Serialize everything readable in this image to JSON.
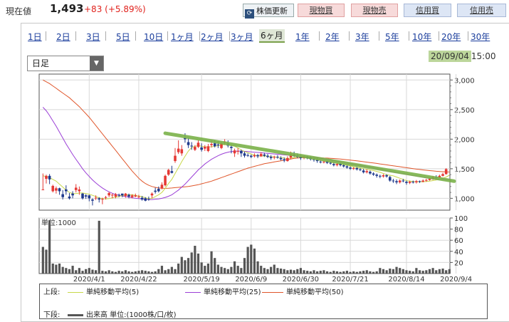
{
  "header": {
    "price_label": "現在値",
    "price_value": "1,493",
    "price_change": "+83 (+5.89%)",
    "refresh_label": "株価更新",
    "buttons": [
      "現物買",
      "現物売",
      "信用買",
      "信用売"
    ]
  },
  "periods": [
    "1日",
    "2日",
    "3日",
    "5日",
    "10日",
    "1ヶ月",
    "2ヶ月",
    "3ヶ月",
    "6ヶ月",
    "1年",
    "2年",
    "3年",
    "5年",
    "10年",
    "20年",
    "30年"
  ],
  "active_period": "6ヶ月",
  "interval_select": "日足",
  "timestamp": {
    "date": "20/09/04",
    "time": "15:00"
  },
  "legend": {
    "upper_label": "上段:",
    "lower_label": "下段:",
    "ma5": "単純移動平均(5)",
    "ma25": "単純移動平均(25)",
    "ma50": "単純移動平均(50)",
    "volume": "出来高 単位:(1000株/口/枚)"
  },
  "colors": {
    "up": "#e53935",
    "down": "#1f3a8c",
    "ma5": "#c8d84a",
    "ma25": "#9b3fd6",
    "ma50": "#e0562b",
    "trend": "#7bb24a",
    "volume": "#555555"
  },
  "chart_data": [
    {
      "type": "candlestick",
      "title": "",
      "ylim": [
        800,
        3100
      ],
      "yticks": [
        "3,000",
        "2,500",
        "2,000",
        "1,500",
        "1,000"
      ],
      "ytick_values": [
        3000,
        2500,
        2000,
        1500,
        1000
      ],
      "xticks": [
        "2020/4/1",
        "2020/4/22",
        "2020/5/19",
        "2020/6/9",
        "2020/6/30",
        "2020/7/21",
        "2020/8/14",
        "2020/9/4"
      ],
      "xtick_index": [
        14,
        29,
        48,
        63,
        78,
        93,
        110,
        125
      ],
      "grid": true,
      "candles": [
        [
          1150,
          1150,
          1420,
          1140
        ],
        [
          1330,
          1380,
          1400,
          1250
        ],
        [
          1380,
          1320,
          1410,
          1240
        ],
        [
          1120,
          1210,
          1230,
          1100
        ],
        [
          1130,
          1170,
          1200,
          1080
        ],
        [
          1170,
          1120,
          1180,
          1060
        ],
        [
          1070,
          1020,
          1140,
          980
        ],
        [
          1150,
          1120,
          1220,
          1060
        ],
        [
          1030,
          1000,
          1090,
          980
        ],
        [
          1080,
          1050,
          1120,
          1000
        ],
        [
          1140,
          1180,
          1240,
          1100
        ],
        [
          1120,
          1150,
          1200,
          1060
        ],
        [
          1080,
          1000,
          1090,
          980
        ],
        [
          1050,
          1030,
          1070,
          990
        ],
        [
          1050,
          1000,
          1060,
          950
        ],
        [
          980,
          960,
          1000,
          880
        ],
        [
          1000,
          1010,
          1050,
          970
        ],
        [
          1000,
          980,
          1020,
          930
        ],
        [
          980,
          990,
          1010,
          900
        ],
        [
          1010,
          1020,
          1040,
          980
        ],
        [
          1050,
          1090,
          1110,
          1020
        ],
        [
          1050,
          1060,
          1080,
          1000
        ],
        [
          1030,
          1070,
          1090,
          1000
        ],
        [
          1060,
          1050,
          1080,
          1020
        ],
        [
          1080,
          1050,
          1080,
          1020
        ],
        [
          1040,
          1080,
          1090,
          1010
        ],
        [
          1060,
          1030,
          1080,
          1000
        ],
        [
          1020,
          1050,
          1070,
          1000
        ],
        [
          1030,
          1050,
          1080,
          1020
        ],
        [
          1020,
          1030,
          1060,
          1000
        ],
        [
          1010,
          980,
          1040,
          960
        ],
        [
          1000,
          960,
          1020,
          950
        ],
        [
          990,
          980,
          1030,
          960
        ],
        [
          1050,
          1080,
          1100,
          1000
        ],
        [
          1130,
          1110,
          1180,
          1080
        ],
        [
          1160,
          1120,
          1200,
          1100
        ],
        [
          1170,
          1230,
          1270,
          1150
        ],
        [
          1220,
          1380,
          1400,
          1200
        ],
        [
          1400,
          1480,
          1500,
          1380
        ],
        [
          1460,
          1430,
          1550,
          1420
        ],
        [
          1630,
          1720,
          1850,
          1600
        ],
        [
          1780,
          1840,
          1980,
          1750
        ],
        [
          1760,
          1830,
          1900,
          1720
        ],
        [
          2020,
          2000,
          2100,
          1940
        ],
        [
          1950,
          1900,
          2020,
          1850
        ],
        [
          1890,
          1880,
          1950,
          1820
        ],
        [
          1820,
          1870,
          1900,
          1800
        ],
        [
          1870,
          1940,
          1980,
          1850
        ],
        [
          1860,
          1820,
          1930,
          1790
        ],
        [
          1840,
          1870,
          1900,
          1800
        ],
        [
          1800,
          1880,
          1920,
          1780
        ],
        [
          1900,
          1920,
          1980,
          1860
        ],
        [
          1930,
          1880,
          1980,
          1860
        ],
        [
          1910,
          1900,
          1960,
          1850
        ],
        [
          1850,
          1930,
          1950,
          1830
        ],
        [
          1940,
          1960,
          2000,
          1900
        ],
        [
          1930,
          1890,
          1980,
          1860
        ],
        [
          1870,
          1850,
          1900,
          1760
        ],
        [
          1760,
          1810,
          1840,
          1700
        ],
        [
          1790,
          1800,
          1850,
          1740
        ],
        [
          1800,
          1760,
          1820,
          1700
        ],
        [
          1760,
          1720,
          1790,
          1690
        ],
        [
          1730,
          1720,
          1760,
          1700
        ],
        [
          1720,
          1700,
          1740,
          1680
        ],
        [
          1710,
          1730,
          1760,
          1690
        ],
        [
          1730,
          1710,
          1750,
          1680
        ],
        [
          1710,
          1750,
          1780,
          1700
        ],
        [
          1740,
          1720,
          1770,
          1700
        ],
        [
          1720,
          1700,
          1750,
          1680
        ],
        [
          1700,
          1680,
          1730,
          1650
        ],
        [
          1690,
          1700,
          1720,
          1660
        ],
        [
          1700,
          1690,
          1730,
          1670
        ],
        [
          1680,
          1660,
          1710,
          1640
        ],
        [
          1660,
          1640,
          1690,
          1610
        ],
        [
          1630,
          1680,
          1710,
          1620
        ],
        [
          1690,
          1750,
          1790,
          1660
        ],
        [
          1740,
          1720,
          1790,
          1700
        ],
        [
          1720,
          1700,
          1760,
          1680
        ],
        [
          1700,
          1680,
          1730,
          1650
        ],
        [
          1680,
          1700,
          1720,
          1660
        ],
        [
          1700,
          1680,
          1720,
          1660
        ],
        [
          1690,
          1660,
          1710,
          1640
        ],
        [
          1660,
          1650,
          1690,
          1620
        ],
        [
          1650,
          1630,
          1680,
          1600
        ],
        [
          1620,
          1610,
          1650,
          1590
        ],
        [
          1610,
          1620,
          1640,
          1590
        ],
        [
          1620,
          1600,
          1640,
          1580
        ],
        [
          1600,
          1590,
          1620,
          1570
        ],
        [
          1580,
          1560,
          1600,
          1540
        ],
        [
          1560,
          1580,
          1600,
          1540
        ],
        [
          1580,
          1560,
          1600,
          1540
        ],
        [
          1560,
          1540,
          1580,
          1520
        ],
        [
          1540,
          1520,
          1560,
          1500
        ],
        [
          1520,
          1500,
          1540,
          1480
        ],
        [
          1500,
          1510,
          1530,
          1480
        ],
        [
          1510,
          1490,
          1530,
          1470
        ],
        [
          1490,
          1480,
          1510,
          1460
        ],
        [
          1470,
          1440,
          1500,
          1420
        ],
        [
          1440,
          1460,
          1490,
          1420
        ],
        [
          1450,
          1420,
          1470,
          1400
        ],
        [
          1420,
          1400,
          1440,
          1380
        ],
        [
          1400,
          1380,
          1420,
          1350
        ],
        [
          1380,
          1370,
          1400,
          1340
        ],
        [
          1370,
          1390,
          1410,
          1350
        ],
        [
          1390,
          1370,
          1410,
          1350
        ],
        [
          1360,
          1300,
          1380,
          1280
        ],
        [
          1300,
          1290,
          1330,
          1260
        ],
        [
          1290,
          1270,
          1320,
          1240
        ],
        [
          1270,
          1300,
          1320,
          1250
        ],
        [
          1300,
          1290,
          1330,
          1270
        ],
        [
          1280,
          1260,
          1300,
          1230
        ],
        [
          1260,
          1280,
          1300,
          1240
        ],
        [
          1280,
          1270,
          1300,
          1250
        ],
        [
          1270,
          1290,
          1310,
          1250
        ],
        [
          1290,
          1280,
          1300,
          1260
        ],
        [
          1280,
          1300,
          1320,
          1270
        ],
        [
          1300,
          1310,
          1330,
          1280
        ],
        [
          1310,
          1330,
          1350,
          1300
        ],
        [
          1330,
          1360,
          1380,
          1310
        ],
        [
          1360,
          1350,
          1390,
          1330
        ],
        [
          1350,
          1380,
          1400,
          1340
        ],
        [
          1380,
          1410,
          1430,
          1370
        ],
        [
          1410,
          1493,
          1510,
          1400
        ]
      ],
      "ma5": [
        1380,
        1370,
        1350,
        1320,
        1290,
        1240,
        1190,
        1140,
        1100,
        1080,
        1080,
        1090,
        1090,
        1080,
        1070,
        1050,
        1030,
        1010,
        995,
        990,
        995,
        1010,
        1020,
        1030,
        1045,
        1055,
        1060,
        1060,
        1050,
        1040,
        1030,
        1010,
        995,
        1000,
        1030,
        1060,
        1100,
        1170,
        1250,
        1320,
        1420,
        1520,
        1620,
        1710,
        1800,
        1860,
        1880,
        1890,
        1880,
        1870,
        1870,
        1870,
        1880,
        1890,
        1900,
        1910,
        1910,
        1900,
        1880,
        1850,
        1820,
        1790,
        1770,
        1750,
        1730,
        1720,
        1715,
        1715,
        1710,
        1705,
        1700,
        1695,
        1690,
        1680,
        1670,
        1680,
        1690,
        1700,
        1705,
        1705,
        1700,
        1690,
        1680,
        1665,
        1650,
        1635,
        1620,
        1610,
        1600,
        1590,
        1580,
        1570,
        1560,
        1545,
        1530,
        1520,
        1510,
        1500,
        1490,
        1480,
        1470,
        1455,
        1440,
        1420,
        1400,
        1390,
        1380,
        1360,
        1340,
        1320,
        1300,
        1290,
        1285,
        1280,
        1280,
        1280,
        1285,
        1290,
        1300,
        1310,
        1320,
        1340,
        1360,
        1390
      ],
      "ma25": [
        2540,
        2480,
        2400,
        2310,
        2220,
        2120,
        2020,
        1920,
        1830,
        1740,
        1660,
        1580,
        1500,
        1430,
        1370,
        1310,
        1260,
        1215,
        1175,
        1140,
        1110,
        1085,
        1065,
        1050,
        1040,
        1030,
        1020,
        1010,
        1000,
        995,
        990,
        985,
        980,
        980,
        985,
        990,
        1000,
        1015,
        1035,
        1060,
        1100,
        1140,
        1190,
        1240,
        1300,
        1360,
        1420,
        1480,
        1530,
        1580,
        1620,
        1660,
        1690,
        1720,
        1745,
        1765,
        1780,
        1790,
        1795,
        1800,
        1800,
        1795,
        1790,
        1785,
        1780,
        1775,
        1770,
        1765,
        1760,
        1755,
        1750,
        1745,
        1740,
        1735,
        1730,
        1725,
        1720,
        1715,
        1710,
        1705,
        1700,
        1695,
        1690,
        1685,
        1675,
        1665,
        1655,
        1645,
        1635,
        1625,
        1615,
        1605,
        1595,
        1585,
        1575,
        1565,
        1555,
        1545,
        1535,
        1525,
        1515,
        1505,
        1495,
        1480,
        1465,
        1455,
        1445,
        1435,
        1425,
        1415,
        1405,
        1395,
        1385,
        1375,
        1365,
        1355,
        1345,
        1340,
        1335,
        1330,
        1325,
        1322,
        1320,
        1320
      ],
      "ma50": [
        3000,
        2970,
        2940,
        2900,
        2860,
        2820,
        2780,
        2740,
        2700,
        2650,
        2600,
        2550,
        2490,
        2430,
        2370,
        2300,
        2230,
        2160,
        2090,
        2020,
        1950,
        1880,
        1810,
        1740,
        1670,
        1600,
        1530,
        1460,
        1400,
        1340,
        1290,
        1250,
        1220,
        1200,
        1185,
        1175,
        1170,
        1168,
        1170,
        1175,
        1180,
        1185,
        1190,
        1195,
        1200,
        1210,
        1220,
        1230,
        1245,
        1260,
        1275,
        1290,
        1310,
        1330,
        1350,
        1370,
        1390,
        1410,
        1430,
        1450,
        1470,
        1490,
        1510,
        1525,
        1540,
        1555,
        1570,
        1585,
        1595,
        1605,
        1615,
        1625,
        1635,
        1645,
        1655,
        1665,
        1675,
        1680,
        1685,
        1690,
        1690,
        1690,
        1688,
        1686,
        1684,
        1682,
        1680,
        1677,
        1673,
        1668,
        1663,
        1658,
        1652,
        1646,
        1640,
        1633,
        1626,
        1619,
        1612,
        1605,
        1598,
        1590,
        1582,
        1574,
        1566,
        1558,
        1550,
        1542,
        1534,
        1526,
        1518,
        1510,
        1502,
        1494,
        1487,
        1480,
        1474,
        1468,
        1463,
        1458,
        1454,
        1450,
        1447,
        1445
      ],
      "trendline": {
        "from": [
          1,
          2100
        ],
        "to": [
          1,
          1290
        ]
      }
    },
    {
      "type": "bar",
      "title": "",
      "ylabel": "単位:1000",
      "ylim": [
        0,
        100
      ],
      "yticks": [
        "100",
        "80",
        "60",
        "40",
        "20"
      ],
      "ytick_values": [
        100,
        80,
        60,
        40,
        20
      ],
      "values": [
        48,
        43,
        96,
        18,
        16,
        18,
        12,
        10,
        8,
        14,
        6,
        10,
        5,
        8,
        10,
        7,
        6,
        95,
        5,
        4,
        6,
        4,
        3,
        5,
        4,
        6,
        4,
        3,
        4,
        5,
        6,
        5,
        4,
        3,
        4,
        8,
        14,
        6,
        8,
        12,
        8,
        18,
        30,
        24,
        28,
        38,
        50,
        36,
        20,
        14,
        18,
        40,
        28,
        16,
        12,
        10,
        8,
        12,
        22,
        14,
        10,
        28,
        48,
        52,
        45,
        22,
        14,
        10,
        8,
        12,
        16,
        10,
        9,
        8,
        6,
        7,
        6,
        8,
        10,
        6,
        5,
        4,
        6,
        4,
        5,
        6,
        4,
        3,
        5,
        4,
        3,
        4,
        5,
        3,
        4,
        3,
        4,
        5,
        6,
        4,
        3,
        4,
        10,
        8,
        6,
        9,
        8,
        12,
        10,
        8,
        6,
        5,
        4,
        10,
        6,
        5,
        6,
        8,
        10,
        6,
        8,
        9,
        6,
        8
      ]
    }
  ]
}
